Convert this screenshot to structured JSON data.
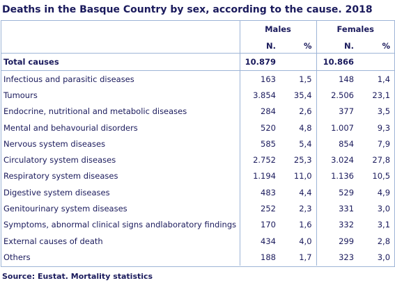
{
  "title": "Deaths in the Basque Country by sex, according to the cause. 2018",
  "header": {
    "males": "Males",
    "females": "Females",
    "n_label": "N.",
    "pct_label": "%"
  },
  "total": {
    "label": "Total causes",
    "males_n": "10.879",
    "females_n": "10.866"
  },
  "rows": [
    {
      "label": "Infectious and parasitic diseases",
      "males_n": "163",
      "males_pct": "1,5",
      "females_n": "148",
      "females_pct": "1,4"
    },
    {
      "label": "Tumours",
      "males_n": "3.854",
      "males_pct": "35,4",
      "females_n": "2.506",
      "females_pct": "23,1"
    },
    {
      "label": "Endocrine, nutritional and metabolic diseases",
      "males_n": "284",
      "males_pct": "2,6",
      "females_n": "377",
      "females_pct": "3,5"
    },
    {
      "label": "Mental and behavourial disorders",
      "males_n": "520",
      "males_pct": "4,8",
      "females_n": "1.007",
      "females_pct": "9,3"
    },
    {
      "label": "Nervous system diseases",
      "males_n": "585",
      "males_pct": "5,4",
      "females_n": "854",
      "females_pct": "7,9"
    },
    {
      "label": "Circulatory system diseases",
      "males_n": "2.752",
      "males_pct": "25,3",
      "females_n": "3.024",
      "females_pct": "27,8"
    },
    {
      "label": "Respiratory system diseases",
      "males_n": "1.194",
      "males_pct": "11,0",
      "females_n": "1.136",
      "females_pct": "10,5"
    },
    {
      "label": "Digestive system diseases",
      "males_n": "483",
      "males_pct": "4,4",
      "females_n": "529",
      "females_pct": "4,9"
    },
    {
      "label": "Genitourinary system diseases",
      "males_n": "252",
      "males_pct": "2,3",
      "females_n": "331",
      "females_pct": "3,0"
    },
    {
      "label": "Symptoms, abnormal clinical signs andlaboratory findings",
      "males_n": "170",
      "males_pct": "1,6",
      "females_n": "332",
      "females_pct": "3,1"
    },
    {
      "label": "External causes of death",
      "males_n": "434",
      "males_pct": "4,0",
      "females_n": "299",
      "females_pct": "2,8"
    },
    {
      "label": "Others",
      "males_n": "188",
      "males_pct": "1,7",
      "females_n": "323",
      "females_pct": "3,0"
    }
  ],
  "source": "Source: Eustat. Mortality statistics"
}
